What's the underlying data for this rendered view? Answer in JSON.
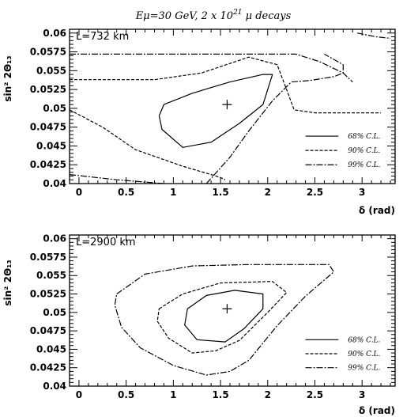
{
  "figure_title": "Eμ=30 GeV, 2 x 10^21 μ decays",
  "chart_data": [
    {
      "type": "contour",
      "panel_label": "L=732 km",
      "xlabel": "δ (rad)",
      "ylabel": "sin² 2Θ₁₃",
      "xlim": [
        -0.1,
        3.35
      ],
      "ylim": [
        0.04,
        0.0605
      ],
      "x_ticks": [
        "0",
        "0.5",
        "1",
        "1.5",
        "2",
        "2.5",
        "3"
      ],
      "y_ticks": [
        "0.06",
        "0.0575",
        "0.055",
        "0.0525",
        "0.05",
        "0.0475",
        "0.045",
        "0.0425",
        "0.04"
      ],
      "best_fit": {
        "x": 1.57,
        "y": 0.0505
      },
      "legend": [
        "68% C.L.",
        "90% C.L.",
        "99% C.L."
      ],
      "contours": [
        {
          "level": "68% C.L.",
          "closed": true,
          "points": [
            [
              0.9,
              0.0505
            ],
            [
              1.2,
              0.052
            ],
            [
              1.6,
              0.0535
            ],
            [
              1.95,
              0.0545
            ],
            [
              2.05,
              0.0545
            ],
            [
              1.95,
              0.0505
            ],
            [
              1.7,
              0.048
            ],
            [
              1.4,
              0.0455
            ],
            [
              1.1,
              0.0448
            ],
            [
              0.88,
              0.0472
            ],
            [
              0.85,
              0.049
            ]
          ]
        },
        {
          "level": "90% C.L.",
          "closed": false,
          "points": [
            [
              -0.1,
              0.0538
            ],
            [
              0.3,
              0.0538
            ],
            [
              0.8,
              0.0538
            ],
            [
              1.3,
              0.0547
            ],
            [
              1.8,
              0.0568
            ],
            [
              2.1,
              0.0558
            ],
            [
              2.2,
              0.0525
            ],
            [
              2.28,
              0.0498
            ],
            [
              2.5,
              0.0494
            ],
            [
              3.2,
              0.0494
            ]
          ]
        },
        {
          "level": "90% C.L.",
          "closed": false,
          "points": [
            [
              -0.1,
              0.0498
            ],
            [
              0.25,
              0.0475
            ],
            [
              0.6,
              0.0445
            ],
            [
              1.1,
              0.0423
            ],
            [
              1.4,
              0.0412
            ],
            [
              1.5,
              0.0408
            ],
            [
              1.55,
              0.0405
            ]
          ]
        },
        {
          "level": "99% C.L.",
          "closed": false,
          "points": [
            [
              -0.1,
              0.0572
            ],
            [
              0.5,
              0.0572
            ],
            [
              1.4,
              0.0572
            ],
            [
              2.3,
              0.0572
            ],
            [
              2.55,
              0.0562
            ],
            [
              2.8,
              0.0547
            ],
            [
              2.9,
              0.0535
            ]
          ]
        },
        {
          "level": "99% C.L.",
          "closed": false,
          "points": [
            [
              2.95,
              0.06
            ],
            [
              3.15,
              0.0595
            ],
            [
              3.3,
              0.0593
            ]
          ]
        },
        {
          "level": "99% C.L.",
          "closed": false,
          "points": [
            [
              -0.1,
              0.0412
            ],
            [
              0.4,
              0.0405
            ],
            [
              0.7,
              0.0402
            ],
            [
              0.9,
              0.04
            ]
          ]
        },
        {
          "level": "99% C.L.",
          "closed": false,
          "points": [
            [
              1.35,
              0.04
            ],
            [
              1.6,
              0.0435
            ],
            [
              1.8,
              0.047
            ],
            [
              2.05,
              0.051
            ],
            [
              2.25,
              0.0535
            ],
            [
              2.45,
              0.0537
            ],
            [
              2.7,
              0.0542
            ],
            [
              2.8,
              0.0547
            ],
            [
              2.8,
              0.0558
            ],
            [
              2.6,
              0.0572
            ]
          ]
        }
      ]
    },
    {
      "type": "contour",
      "panel_label": "L=2900 km",
      "xlabel": "δ (rad)",
      "ylabel": "sin² 2Θ₁₃",
      "xlim": [
        -0.1,
        3.35
      ],
      "ylim": [
        0.04,
        0.0605
      ],
      "x_ticks": [
        "0",
        "0.5",
        "1",
        "1.5",
        "2",
        "2.5",
        "3"
      ],
      "y_ticks": [
        "0.06",
        "0.0575",
        "0.055",
        "0.0525",
        "0.05",
        "0.0475",
        "0.045",
        "0.0425",
        "0.04"
      ],
      "best_fit": {
        "x": 1.57,
        "y": 0.0505
      },
      "legend": [
        "68% C.L.",
        "90% C.L.",
        "99% C.L."
      ],
      "contours": [
        {
          "level": "68% C.L.",
          "closed": true,
          "points": [
            [
              1.15,
              0.0505
            ],
            [
              1.35,
              0.0523
            ],
            [
              1.65,
              0.053
            ],
            [
              1.95,
              0.0525
            ],
            [
              1.95,
              0.0505
            ],
            [
              1.75,
              0.0478
            ],
            [
              1.55,
              0.046
            ],
            [
              1.25,
              0.0463
            ],
            [
              1.12,
              0.0483
            ]
          ]
        },
        {
          "level": "90% C.L.",
          "closed": true,
          "points": [
            [
              0.85,
              0.0505
            ],
            [
              1.1,
              0.0525
            ],
            [
              1.5,
              0.054
            ],
            [
              2.05,
              0.0542
            ],
            [
              2.2,
              0.0527
            ],
            [
              2.0,
              0.05
            ],
            [
              1.7,
              0.0462
            ],
            [
              1.45,
              0.0448
            ],
            [
              1.2,
              0.0445
            ],
            [
              0.95,
              0.0465
            ],
            [
              0.83,
              0.0488
            ]
          ]
        },
        {
          "level": "99% C.L.",
          "closed": true,
          "points": [
            [
              0.4,
              0.0525
            ],
            [
              0.7,
              0.0552
            ],
            [
              1.2,
              0.0563
            ],
            [
              1.8,
              0.0565
            ],
            [
              2.65,
              0.0565
            ],
            [
              2.7,
              0.0555
            ],
            [
              2.4,
              0.0522
            ],
            [
              2.1,
              0.0482
            ],
            [
              1.8,
              0.0435
            ],
            [
              1.6,
              0.042
            ],
            [
              1.35,
              0.0415
            ],
            [
              1.0,
              0.0428
            ],
            [
              0.65,
              0.0452
            ],
            [
              0.45,
              0.048
            ],
            [
              0.38,
              0.051
            ]
          ]
        }
      ]
    }
  ]
}
